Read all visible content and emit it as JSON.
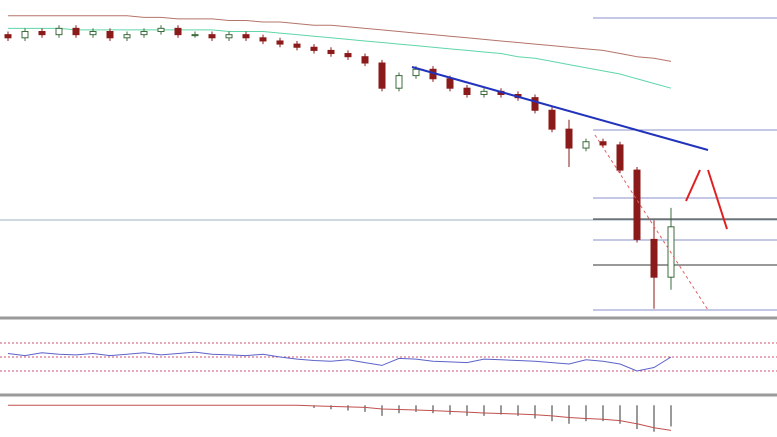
{
  "chart_data": {
    "type": "candlestick",
    "ylim": [
      0,
      100
    ],
    "up_color": "#ffffff",
    "up_stroke": "#3c6b3c",
    "down_color": "#8b1a1a",
    "open": [
      89,
      88,
      90,
      89,
      91,
      89,
      90,
      88,
      89,
      90,
      91,
      89,
      89,
      88,
      89,
      88,
      87,
      86,
      85,
      84,
      83,
      82,
      80,
      72,
      76,
      78,
      75,
      72,
      70,
      71,
      70,
      69,
      65,
      59,
      53,
      55,
      54,
      46,
      24,
      12
    ],
    "high": [
      90,
      91,
      91,
      92,
      92,
      91,
      91,
      90,
      91,
      92,
      92,
      90,
      90,
      90,
      90,
      89,
      88,
      87,
      86,
      85,
      84,
      83,
      81,
      77,
      79,
      79,
      76,
      73,
      72,
      72,
      71,
      70,
      66,
      62,
      56,
      56,
      55,
      47,
      30,
      34
    ],
    "low": [
      87,
      87,
      88,
      88,
      88,
      88,
      87,
      87,
      88,
      89,
      88,
      88,
      87,
      87,
      87,
      86,
      85,
      84,
      83,
      82,
      81,
      79,
      71,
      71,
      75,
      74,
      71,
      69,
      69,
      69,
      68,
      64,
      58,
      47,
      52,
      53,
      45,
      23,
      2,
      8
    ],
    "close": [
      88,
      90,
      89,
      91,
      89,
      90,
      88,
      89,
      90,
      91,
      89,
      89,
      88,
      89,
      88,
      87,
      86,
      85,
      84,
      83,
      82,
      80,
      72,
      76,
      78,
      75,
      72,
      70,
      71,
      70,
      69,
      65,
      59,
      53,
      55,
      54,
      46,
      24,
      12,
      28
    ],
    "series": [
      {
        "color": "#b5746a",
        "values": [
          95,
          95,
          95,
          95,
          95,
          95,
          95,
          95,
          94.5,
          94.5,
          94,
          94,
          94,
          93.5,
          93.5,
          93,
          93,
          92.5,
          92,
          92,
          91.5,
          91,
          90.5,
          90,
          89.5,
          89,
          88.5,
          88,
          87.5,
          87,
          86.5,
          86,
          85.5,
          85,
          84.5,
          84,
          83,
          82,
          81.5,
          80.5
        ]
      },
      {
        "color": "#5fd6a8",
        "values": [
          91,
          91,
          91,
          91,
          90.5,
          90.5,
          90.5,
          90.5,
          90.5,
          90.5,
          90.5,
          90.5,
          90.5,
          90,
          90,
          90,
          89.5,
          89,
          88.5,
          88,
          87.5,
          87,
          86.5,
          86,
          85.5,
          85,
          84.5,
          84,
          83.5,
          83,
          82,
          81.5,
          80.5,
          79.5,
          78.5,
          77.5,
          76.5,
          75,
          73.5,
          72
        ]
      }
    ],
    "rsi": {
      "color": "#5b63c9",
      "ylim": [
        0,
        100
      ],
      "values": [
        55,
        52,
        56,
        54,
        53,
        55,
        52,
        54,
        56,
        53,
        55,
        57,
        54,
        53,
        52,
        54,
        50,
        47,
        45,
        44,
        46,
        42,
        38,
        48,
        47,
        44,
        43,
        42,
        47,
        46,
        45,
        44,
        42,
        40,
        46,
        44,
        40,
        30,
        35,
        50
      ]
    },
    "macd": {
      "color": "#c0504d",
      "bar_color": "#9a9a9a",
      "ylim": [
        -12,
        2
      ],
      "values": [
        0,
        0,
        0,
        0,
        0,
        0,
        0,
        0,
        0,
        0,
        0,
        0,
        0,
        0,
        0,
        0,
        0,
        0,
        -0.2,
        -0.4,
        -0.6,
        -0.8,
        -1.4,
        -1.6,
        -1.8,
        -2,
        -2.3,
        -2.6,
        -2.9,
        -3.1,
        -3.3,
        -3.6,
        -4,
        -4.6,
        -5,
        -5.3,
        -5.8,
        -7,
        -8.5,
        -9.5
      ],
      "histogram": [
        0,
        0,
        0,
        0,
        0,
        0,
        0,
        0,
        0,
        0,
        0,
        0,
        0,
        0,
        0,
        0,
        0,
        0,
        -1,
        -1.5,
        -2,
        -2.5,
        -4,
        -3,
        -2.5,
        -3,
        -3.5,
        -4,
        -4,
        -3.5,
        -4,
        -5,
        -6,
        -7,
        -6,
        -6,
        -7,
        -9,
        -10,
        -8
      ]
    }
  }
}
